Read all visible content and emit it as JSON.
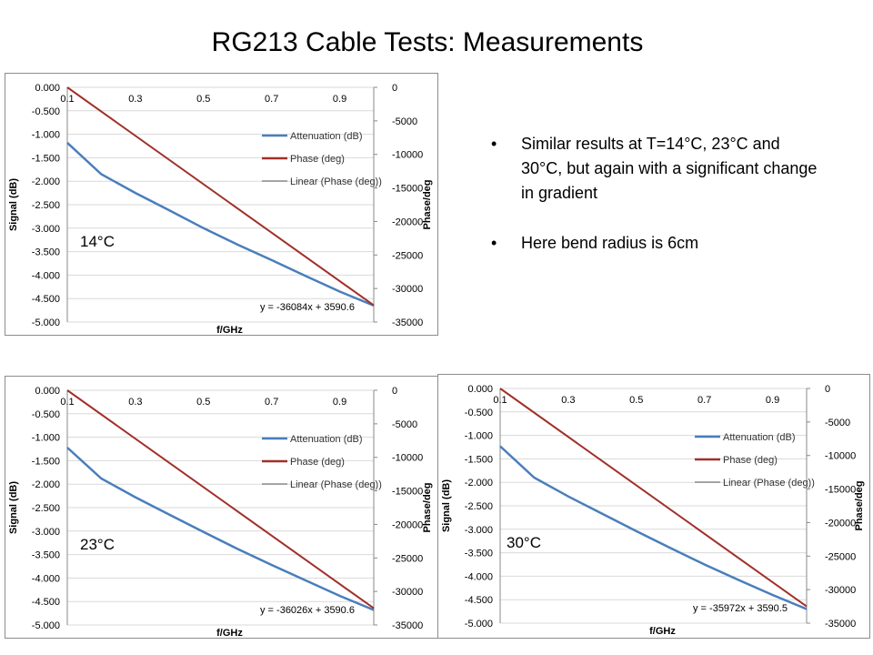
{
  "title": "RG213 Cable Tests: Measurements",
  "bullets": [
    "Similar results at T=14°C, 23°C and 30°C, but again with a significant change in gradient",
    "Here bend radius is 6cm"
  ],
  "bullet_glyph": "•",
  "chart_data": [
    {
      "type": "line",
      "annotation": "14°C",
      "xlabel": "f/GHz",
      "ylabel": "Signal (dB)",
      "y2label": "Phase/deg",
      "x_ticks": [
        "0.1",
        "0.3",
        "0.5",
        "0.7",
        "0.9"
      ],
      "y_ticks": [
        "0.000",
        "-0.500",
        "-1.000",
        "-1.500",
        "-2.000",
        "-2.500",
        "-3.000",
        "-3.500",
        "-4.000",
        "-4.500",
        "-5.000"
      ],
      "y2_ticks": [
        "0",
        "-5000",
        "-10000",
        "-15000",
        "-20000",
        "-25000",
        "-30000",
        "-35000"
      ],
      "xlim": [
        0.1,
        1.0
      ],
      "ylim": [
        -5.0,
        0.0
      ],
      "y2lim": [
        -35000,
        0
      ],
      "trendline_equation": "y = -36084x + 3590.6",
      "legend": [
        "Attenuation (dB)",
        "Phase (deg)",
        "Linear (Phase (deg))"
      ],
      "series": [
        {
          "name": "Attenuation (dB)",
          "axis": "left",
          "color": "#4a7ebb",
          "x": [
            0.1,
            0.2,
            0.3,
            0.4,
            0.5,
            0.6,
            0.7,
            0.8,
            0.9,
            1.0
          ],
          "y": [
            -1.18,
            -1.85,
            -2.25,
            -2.62,
            -3.0,
            -3.35,
            -3.68,
            -4.02,
            -4.35,
            -4.65
          ]
        },
        {
          "name": "Phase (deg)",
          "axis": "right",
          "color": "#a0302a",
          "x": [
            0.1,
            1.0
          ],
          "y": [
            0,
            -32500
          ]
        },
        {
          "name": "Linear (Phase (deg))",
          "axis": "right",
          "color": "#555555",
          "x": [
            0.1,
            1.0
          ],
          "y": [
            0,
            -32500
          ]
        }
      ],
      "colors": {
        "attenuation": "#4a7ebb",
        "phase": "#a0302a",
        "linear": "#555555",
        "grid": "#d9d9d9"
      }
    },
    {
      "type": "line",
      "annotation": "23°C",
      "xlabel": "f/GHz",
      "ylabel": "Signal (dB)",
      "y2label": "Phase/deg",
      "x_ticks": [
        "0.1",
        "0.3",
        "0.5",
        "0.7",
        "0.9"
      ],
      "y_ticks": [
        "0.000",
        "-0.500",
        "-1.000",
        "-1.500",
        "-2.000",
        "-2.500",
        "-3.000",
        "-3.500",
        "-4.000",
        "-4.500",
        "-5.000"
      ],
      "y2_ticks": [
        "0",
        "-5000",
        "-10000",
        "-15000",
        "-20000",
        "-25000",
        "-30000",
        "-35000"
      ],
      "xlim": [
        0.1,
        1.0
      ],
      "ylim": [
        -5.0,
        0.0
      ],
      "y2lim": [
        -35000,
        0
      ],
      "trendline_equation": "y = -36026x + 3590.6",
      "legend": [
        "Attenuation (dB)",
        "Phase (deg)",
        "Linear (Phase (deg))"
      ],
      "series": [
        {
          "name": "Attenuation (dB)",
          "axis": "left",
          "color": "#4a7ebb",
          "x": [
            0.1,
            0.2,
            0.3,
            0.4,
            0.5,
            0.6,
            0.7,
            0.8,
            0.9,
            1.0
          ],
          "y": [
            -1.22,
            -1.88,
            -2.28,
            -2.65,
            -3.02,
            -3.38,
            -3.72,
            -4.05,
            -4.38,
            -4.68
          ]
        },
        {
          "name": "Phase (deg)",
          "axis": "right",
          "color": "#a0302a",
          "x": [
            0.1,
            1.0
          ],
          "y": [
            0,
            -32500
          ]
        },
        {
          "name": "Linear (Phase (deg))",
          "axis": "right",
          "color": "#555555",
          "x": [
            0.1,
            1.0
          ],
          "y": [
            0,
            -32500
          ]
        }
      ],
      "colors": {
        "attenuation": "#4a7ebb",
        "phase": "#a0302a",
        "linear": "#555555",
        "grid": "#d9d9d9"
      }
    },
    {
      "type": "line",
      "annotation": "30°C",
      "xlabel": "f/GHz",
      "ylabel": "Signal (dB)",
      "y2label": "Phase/deg",
      "x_ticks": [
        "0.1",
        "0.3",
        "0.5",
        "0.7",
        "0.9"
      ],
      "y_ticks": [
        "0.000",
        "-0.500",
        "-1.000",
        "-1.500",
        "-2.000",
        "-2.500",
        "-3.000",
        "-3.500",
        "-4.000",
        "-4.500",
        "-5.000"
      ],
      "y2_ticks": [
        "0",
        "-5000",
        "-10000",
        "-15000",
        "-20000",
        "-25000",
        "-30000",
        "-35000"
      ],
      "xlim": [
        0.1,
        1.0
      ],
      "ylim": [
        -5.0,
        0.0
      ],
      "y2lim": [
        -35000,
        0
      ],
      "trendline_equation": "y = -35972x + 3590.5",
      "legend": [
        "Attenuation (dB)",
        "Phase (deg)",
        "Linear (Phase (deg))"
      ],
      "series": [
        {
          "name": "Attenuation (dB)",
          "axis": "left",
          "color": "#4a7ebb",
          "x": [
            0.1,
            0.2,
            0.3,
            0.4,
            0.5,
            0.6,
            0.7,
            0.8,
            0.9,
            1.0
          ],
          "y": [
            -1.23,
            -1.9,
            -2.3,
            -2.67,
            -3.04,
            -3.4,
            -3.75,
            -4.08,
            -4.4,
            -4.7
          ]
        },
        {
          "name": "Phase (deg)",
          "axis": "right",
          "color": "#a0302a",
          "x": [
            0.1,
            1.0
          ],
          "y": [
            0,
            -32500
          ]
        },
        {
          "name": "Linear (Phase (deg))",
          "axis": "right",
          "color": "#555555",
          "x": [
            0.1,
            1.0
          ],
          "y": [
            0,
            -32500
          ]
        }
      ],
      "colors": {
        "attenuation": "#4a7ebb",
        "phase": "#a0302a",
        "linear": "#555555",
        "grid": "#d9d9d9"
      }
    }
  ]
}
